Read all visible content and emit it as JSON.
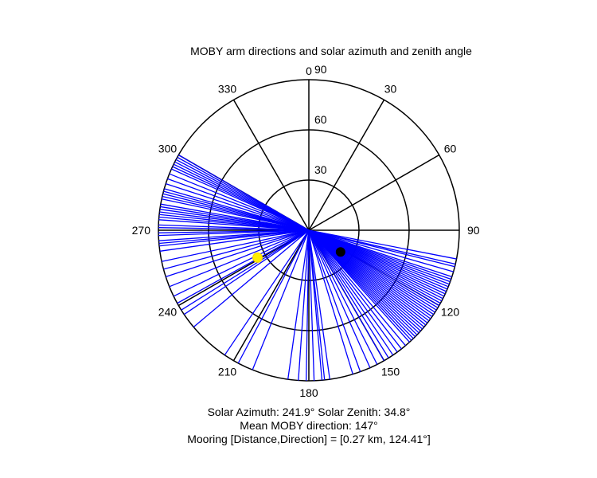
{
  "chart_data": {
    "type": "polar",
    "title": "MOBY arm directions and solar azimuth and zenith angle",
    "radial_ticks": [
      "30",
      "60",
      "90"
    ],
    "radial_max": 90,
    "spokes_deg": [
      0,
      30,
      60,
      90,
      120,
      150,
      180,
      210,
      240,
      270,
      300,
      330
    ],
    "angle_labels": [
      {
        "deg": 0,
        "text": "0"
      },
      {
        "deg": 30,
        "text": "30"
      },
      {
        "deg": 60,
        "text": "60"
      },
      {
        "deg": 90,
        "text": "90"
      },
      {
        "deg": 120,
        "text": "120"
      },
      {
        "deg": 150,
        "text": "150"
      },
      {
        "deg": 180,
        "text": "180"
      },
      {
        "deg": 210,
        "text": "210"
      },
      {
        "deg": 240,
        "text": "240"
      },
      {
        "deg": 270,
        "text": "270"
      },
      {
        "deg": 300,
        "text": "300"
      },
      {
        "deg": 330,
        "text": "330"
      }
    ],
    "arm_color": "#0000ff",
    "arm_directions_deg": [
      101,
      103,
      104,
      106,
      108,
      109,
      110,
      111,
      112,
      113,
      114,
      115,
      116,
      117,
      118,
      119,
      120,
      121,
      122,
      123,
      124,
      125,
      126,
      127,
      128,
      129,
      130,
      131,
      132,
      133,
      134,
      135,
      136,
      137,
      138,
      140,
      142,
      144,
      146,
      148,
      150,
      153,
      156,
      160,
      163,
      172,
      174,
      175,
      178,
      181,
      184,
      188,
      202,
      208,
      214,
      230,
      236,
      238,
      241,
      244,
      248,
      252,
      255,
      258,
      262,
      264,
      265,
      266,
      268,
      269,
      271,
      272,
      274,
      275,
      276,
      277,
      278,
      279,
      280,
      282,
      283,
      284,
      285,
      286,
      288,
      290,
      292,
      294,
      295,
      296,
      297,
      298,
      299,
      300
    ],
    "solar": {
      "azimuth_deg": 241.9,
      "zenith_deg": 34.8,
      "color": "#ffee00"
    },
    "mooring": {
      "direction_deg": 124.41,
      "distance_km": 0.27,
      "marker_radius_deg": 23,
      "color": "#000000"
    }
  },
  "captions": {
    "line1": "Solar Azimuth: 241.9°   Solar Zenith: 34.8°",
    "line2": "Mean MOBY direction: 147°",
    "line3": "Mooring [Distance,Direction] = [0.27 km, 124.41°]"
  }
}
